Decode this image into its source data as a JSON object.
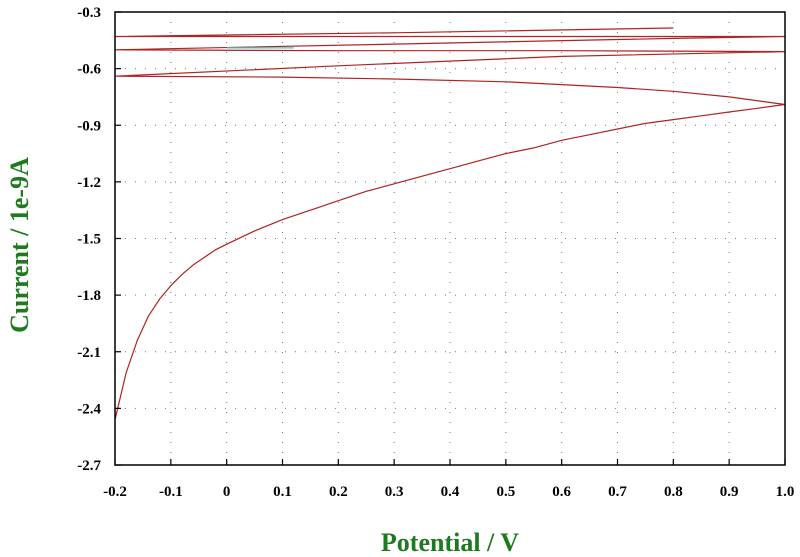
{
  "chart_data": {
    "type": "line",
    "title": "",
    "xlabel": "Potential / V",
    "ylabel": "Current / 1e-9A",
    "xlim": [
      -0.2,
      1.0
    ],
    "ylim": [
      -2.7,
      -0.3
    ],
    "x_ticks": [
      -0.2,
      -0.1,
      0,
      0.1,
      0.2,
      0.3,
      0.4,
      0.5,
      0.6,
      0.7,
      0.8,
      0.9,
      1.0
    ],
    "x_tick_labels": [
      "-0.2",
      "-0.1",
      "0",
      "0.1",
      "0.2",
      "0.3",
      "0.4",
      "0.5",
      "0.6",
      "0.7",
      "0.8",
      "0.9",
      "1.0"
    ],
    "y_ticks": [
      -0.3,
      -0.6,
      -0.9,
      -1.2,
      -1.5,
      -1.8,
      -2.1,
      -2.4,
      -2.7
    ],
    "y_tick_labels": [
      "-0.3",
      "-0.6",
      "-0.9",
      "-1.2",
      "-1.5",
      "-1.8",
      "-2.1",
      "-2.4",
      "-2.7"
    ],
    "grid": true,
    "grid_style": "dotted",
    "axis_title_color": "#1e7a1e",
    "series": [
      {
        "color": "#b22222",
        "points": [
          [
            -0.2,
            -2.46
          ],
          [
            -0.18,
            -2.21
          ],
          [
            -0.16,
            -2.04
          ],
          [
            -0.14,
            -1.91
          ],
          [
            -0.12,
            -1.82
          ],
          [
            -0.1,
            -1.75
          ],
          [
            -0.08,
            -1.69
          ],
          [
            -0.06,
            -1.64
          ],
          [
            -0.04,
            -1.6
          ],
          [
            -0.02,
            -1.56
          ],
          [
            0.0,
            -1.53
          ],
          [
            0.05,
            -1.46
          ],
          [
            0.1,
            -1.4
          ],
          [
            0.15,
            -1.35
          ],
          [
            0.2,
            -1.3
          ],
          [
            0.25,
            -1.25
          ],
          [
            0.3,
            -1.21
          ],
          [
            0.35,
            -1.17
          ],
          [
            0.4,
            -1.13
          ],
          [
            0.45,
            -1.09
          ],
          [
            0.5,
            -1.05
          ],
          [
            0.55,
            -1.02
          ],
          [
            0.6,
            -0.98
          ],
          [
            0.65,
            -0.95
          ],
          [
            0.7,
            -0.92
          ],
          [
            0.75,
            -0.89
          ],
          [
            0.8,
            -0.87
          ],
          [
            0.85,
            -0.85
          ],
          [
            0.9,
            -0.83
          ],
          [
            0.95,
            -0.81
          ],
          [
            1.0,
            -0.79
          ],
          [
            0.9,
            -0.75
          ],
          [
            0.8,
            -0.72
          ],
          [
            0.7,
            -0.7
          ],
          [
            0.5,
            -0.67
          ],
          [
            0.3,
            -0.655
          ],
          [
            0.1,
            -0.645
          ],
          [
            -0.2,
            -0.64
          ],
          [
            0.2,
            -0.585
          ],
          [
            0.6,
            -0.535
          ],
          [
            1.0,
            -0.51
          ],
          [
            0.6,
            -0.505
          ],
          [
            0.2,
            -0.505
          ],
          [
            -0.2,
            -0.5
          ],
          [
            0.3,
            -0.47
          ],
          [
            0.8,
            -0.44
          ],
          [
            1.0,
            -0.43
          ],
          [
            0.5,
            -0.43
          ],
          [
            0.0,
            -0.43
          ],
          [
            -0.2,
            -0.43
          ],
          [
            0.3,
            -0.41
          ],
          [
            0.8,
            -0.385
          ]
        ]
      },
      {
        "color": "#40c8c8",
        "points": [
          [
            0.0,
            -0.49
          ],
          [
            0.12,
            -0.49
          ]
        ]
      }
    ]
  }
}
